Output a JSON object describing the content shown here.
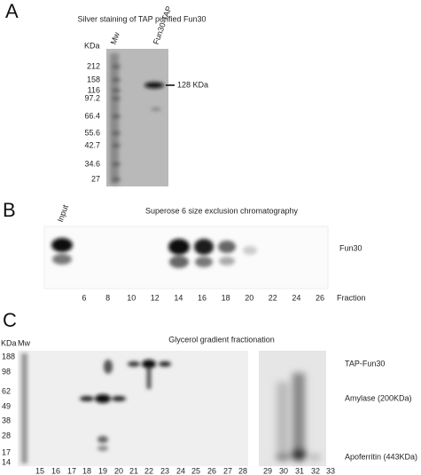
{
  "panel_a": {
    "label": "A",
    "title": "Silver staining of TAP purified Fun30",
    "unit": "KDa",
    "lanes": [
      "Mw",
      "Fun30-TAP"
    ],
    "markers": [
      "212",
      "158",
      "116",
      "97.2",
      "66.4",
      "55.6",
      "42.7",
      "34.6",
      "27"
    ],
    "annotation": "128 KDa"
  },
  "panel_b": {
    "label": "B",
    "title": "Superose 6 size exclusion chromatography",
    "lane": "Input",
    "band_label": "Fun30",
    "fractions": [
      "6",
      "8",
      "10",
      "12",
      "14",
      "16",
      "18",
      "20",
      "22",
      "24",
      "26"
    ],
    "axis_label": "Fraction"
  },
  "panel_c": {
    "label": "C",
    "unit": "KDa",
    "lane": "Mw",
    "title": "Glycerol gradient fractionation",
    "markers": [
      "188",
      "98",
      "62",
      "49",
      "38",
      "28",
      "17",
      "14"
    ],
    "fractions": [
      "15",
      "16",
      "17",
      "18",
      "19",
      "20",
      "21",
      "22",
      "23",
      "24",
      "25",
      "26",
      "27",
      "28",
      "29",
      "30",
      "31",
      "32",
      "33"
    ],
    "band_labels": [
      "TAP-Fun30",
      "Amylase (200KDa)",
      "Apoferritin (443KDa)"
    ]
  }
}
